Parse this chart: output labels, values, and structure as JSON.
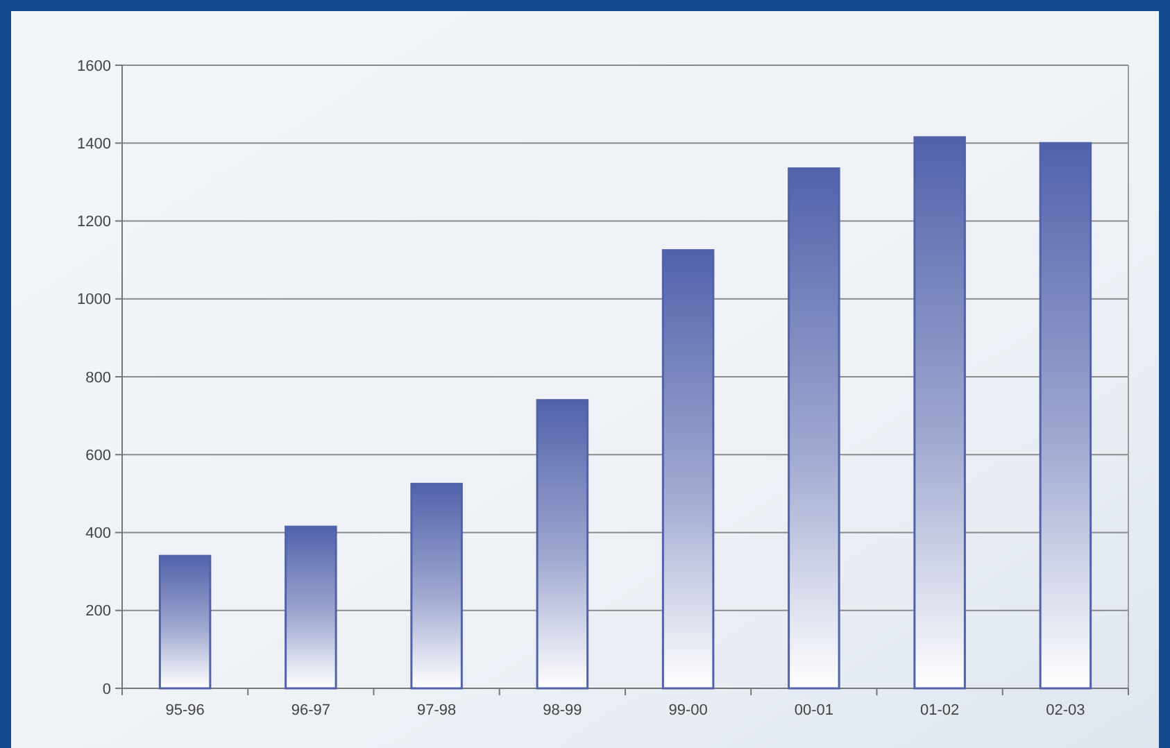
{
  "chart_data": {
    "type": "bar",
    "categories": [
      "95-96",
      "96-97",
      "97-98",
      "98-99",
      "99-00",
      "00-01",
      "01-02",
      "02-03"
    ],
    "values": [
      340,
      415,
      525,
      740,
      1125,
      1335,
      1415,
      1400
    ],
    "color": "#5262aa",
    "ylim": [
      0,
      1600
    ],
    "yticks": [
      0,
      200,
      400,
      600,
      800,
      1000,
      1200,
      1400,
      1600
    ],
    "grid": "y"
  }
}
